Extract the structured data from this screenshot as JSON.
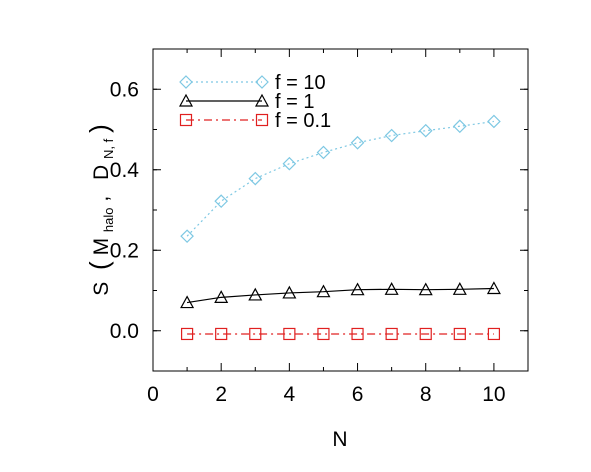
{
  "chart_data": {
    "type": "line",
    "xlabel": "N",
    "ylabel_main": "S",
    "ylabel_sub1": "halo",
    "ylabel_sub2": "N, f",
    "xlim": [
      0,
      11
    ],
    "ylim": [
      -0.1,
      0.7
    ],
    "x_ticks": [
      0,
      2,
      4,
      6,
      8,
      10
    ],
    "y_ticks": [
      0.0,
      0.2,
      0.4,
      0.6
    ],
    "x_tick_labels": [
      "0",
      "2",
      "4",
      "6",
      "8",
      "10"
    ],
    "y_tick_labels": [
      "0.0",
      "0.2",
      "0.4",
      "0.6"
    ],
    "legend_position": "top-left",
    "x": [
      1,
      2,
      3,
      4,
      5,
      6,
      7,
      8,
      9,
      10
    ],
    "series": [
      {
        "name": "f = 10",
        "color": "#7ec8e3",
        "marker": "diamond",
        "line": "dotted",
        "values": [
          0.235,
          0.322,
          0.378,
          0.415,
          0.443,
          0.467,
          0.485,
          0.497,
          0.508,
          0.52
        ]
      },
      {
        "name": "f = 1",
        "color": "#000000",
        "marker": "triangle",
        "line": "solid",
        "values": [
          0.07,
          0.083,
          0.089,
          0.094,
          0.097,
          0.102,
          0.103,
          0.102,
          0.103,
          0.105
        ]
      },
      {
        "name": "f = 0.1",
        "color": "#e02020",
        "marker": "square",
        "line": "dashdot",
        "values": [
          -0.008,
          -0.008,
          -0.008,
          -0.008,
          -0.008,
          -0.008,
          -0.008,
          -0.008,
          -0.008,
          -0.008
        ]
      }
    ]
  }
}
